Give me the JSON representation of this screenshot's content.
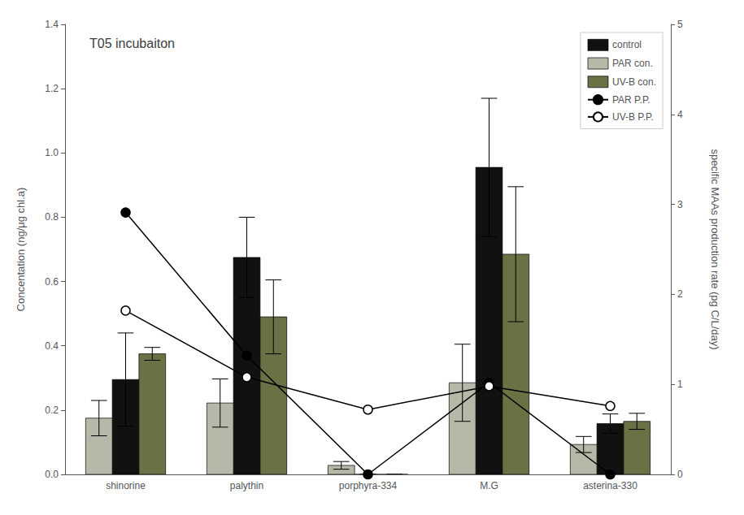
{
  "chart_data": {
    "type": "bar",
    "title": "T05 incubaiton",
    "categories": [
      "shinorine",
      "palythin",
      "porphyra-334",
      "M.G",
      "asterina-330"
    ],
    "series": [
      {
        "name": "control",
        "type": "bar",
        "color": "#111111",
        "values": [
          0.295,
          0.675,
          0.0,
          0.955,
          0.158
        ],
        "errors": [
          0.145,
          0.125,
          0.0,
          0.215,
          0.03
        ]
      },
      {
        "name": "PAR con.",
        "type": "bar",
        "color": "#b8b8a8",
        "values": [
          0.175,
          0.222,
          0.028,
          0.285,
          0.093
        ],
        "errors": [
          0.055,
          0.075,
          0.012,
          0.12,
          0.025
        ]
      },
      {
        "name": "UV-B con.",
        "type": "bar",
        "color": "#6b7045",
        "values": [
          0.375,
          0.49,
          0.0,
          0.685,
          0.165
        ],
        "errors": [
          0.02,
          0.115,
          0.0,
          0.21,
          0.025
        ]
      },
      {
        "name": "PAR P.P.",
        "type": "line",
        "axis": "y2",
        "color": "#000000",
        "marker": "filled",
        "values": [
          2.91,
          1.32,
          0.0,
          1.02,
          0.0
        ]
      },
      {
        "name": "UV-B P.P.",
        "type": "line",
        "axis": "y2",
        "color": "#000000",
        "marker": "open",
        "values": [
          1.82,
          1.08,
          0.72,
          0.98,
          0.76
        ]
      }
    ],
    "ylabel": "Concentation (ng/μg chl.a)",
    "y2label": "specific MAAs production rate (pg C/L/day)",
    "ylim": [
      0,
      1.4
    ],
    "yticks": [
      {
        "value": 0,
        "label": "0.0"
      },
      0.2,
      0.4,
      0.6,
      0.8,
      {
        "value": 1,
        "label": "1.0"
      },
      1.2,
      1.4
    ],
    "y2lim": [
      0,
      5
    ],
    "y2ticks": [
      0,
      1,
      2,
      3,
      4,
      5
    ],
    "grid": false,
    "legend": "upper right"
  }
}
